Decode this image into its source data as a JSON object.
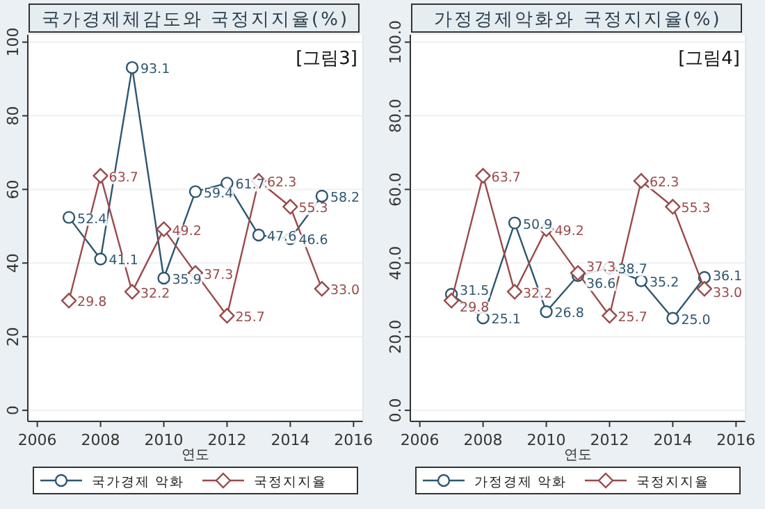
{
  "chart_data": [
    {
      "type": "line",
      "title": "국가경제체감도와 국정지지율(%)",
      "xlabel": "연도",
      "annotations": [
        "[그림3]"
      ],
      "x": [
        2007,
        2008,
        2009,
        2010,
        2011,
        2012,
        2013,
        2014,
        2015
      ],
      "xlim": [
        2005.7,
        2016.3
      ],
      "xticks": [
        2006,
        2008,
        2010,
        2012,
        2014,
        2016
      ],
      "ylim": [
        -3,
        102
      ],
      "yticks": [
        0,
        20,
        40,
        60,
        80,
        100
      ],
      "grid": "y",
      "legend": "bottom",
      "series": [
        {
          "name": "국가경제 악화",
          "color": "#2e5670",
          "marker": "circle",
          "values": [
            52.4,
            41.1,
            93.1,
            35.9,
            59.4,
            61.7,
            47.6,
            46.6,
            58.2
          ],
          "value_labels": [
            "52.4",
            "41.1",
            "93.1",
            "35.9",
            "59.4",
            "61.7",
            "47.6",
            "46.6",
            "58.2"
          ]
        },
        {
          "name": "국정지지율",
          "color": "#9a4a4a",
          "marker": "diamond",
          "values": [
            29.8,
            63.7,
            32.2,
            49.2,
            37.3,
            25.7,
            62.3,
            55.3,
            33.0
          ],
          "value_labels": [
            "29.8",
            "63.7",
            "32.2",
            "49.2",
            "37.3",
            "25.7",
            "62.3",
            "55.3",
            "33.0"
          ]
        }
      ]
    },
    {
      "type": "line",
      "title": "가정경제악화와 국정지지율(%)",
      "xlabel": "연도",
      "annotations": [
        "[그림4]"
      ],
      "x": [
        2007,
        2008,
        2009,
        2010,
        2011,
        2012,
        2013,
        2014,
        2015
      ],
      "xlim": [
        2005.7,
        2016.3
      ],
      "xticks": [
        2006,
        2008,
        2010,
        2012,
        2014,
        2016
      ],
      "ylim": [
        -3,
        102
      ],
      "yticks": [
        {
          "value": 0,
          "label": "0.0"
        },
        {
          "value": 20,
          "label": "20.0"
        },
        {
          "value": 40,
          "label": "40.0"
        },
        {
          "value": 60,
          "label": "60.0"
        },
        {
          "value": 80,
          "label": "80.0"
        },
        {
          "value": 100,
          "label": "100.0"
        }
      ],
      "grid": "y",
      "legend": "bottom",
      "series": [
        {
          "name": "가정경제 악화",
          "color": "#2e5670",
          "marker": "circle",
          "values": [
            31.5,
            25.1,
            50.9,
            26.8,
            36.6,
            38.7,
            35.2,
            25.0,
            36.1
          ],
          "value_labels": [
            "31.5",
            "25.1",
            "50.9",
            "26.8",
            "36.6",
            "38.7",
            "35.2",
            "25.0",
            "36.1"
          ]
        },
        {
          "name": "국정지지율",
          "color": "#9a4a4a",
          "marker": "diamond",
          "values": [
            29.8,
            63.7,
            32.2,
            49.2,
            37.3,
            25.7,
            62.3,
            55.3,
            33.0
          ],
          "value_labels": [
            "29.8",
            "63.7",
            "32.2",
            "49.2",
            "37.3",
            "25.7",
            "62.3",
            "55.3",
            "33.0"
          ]
        }
      ]
    }
  ]
}
